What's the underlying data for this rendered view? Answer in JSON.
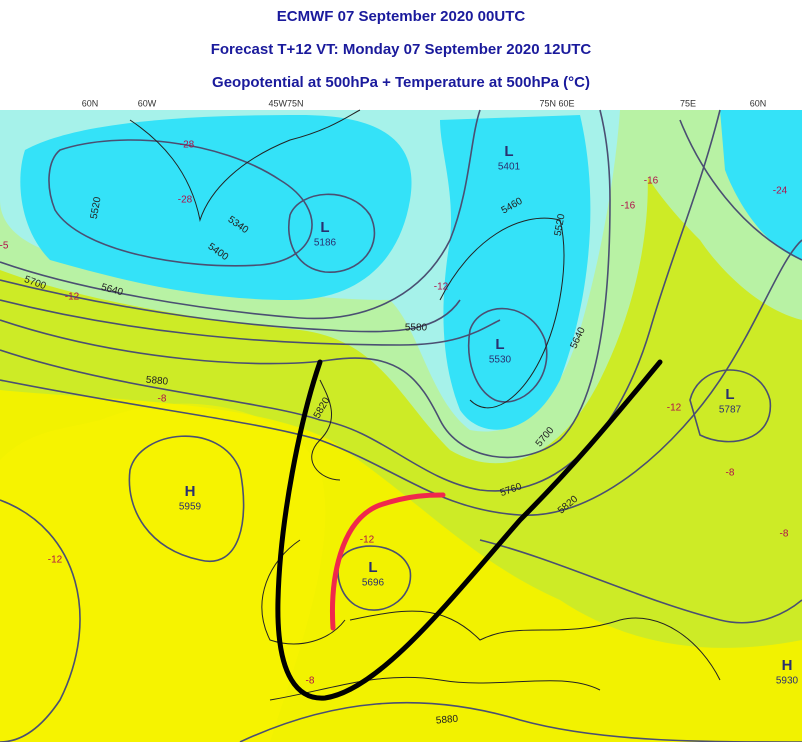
{
  "header": {
    "title": "ECMWF 07 September 2020 00UTC",
    "subtitle": "Forecast T+12 VT: Monday 07 September 2020 12UTC",
    "field": "Geopotential at 500hPa + Temperature at 500hPa (°C)"
  },
  "longitude_labels": [
    "60N",
    "60W",
    "45W75N",
    "75N 60E",
    "75E",
    "60N"
  ],
  "centers": [
    {
      "kind": "L",
      "value": "5401"
    },
    {
      "kind": "L",
      "value": "5186"
    },
    {
      "kind": "L",
      "value": "5530"
    },
    {
      "kind": "L",
      "value": "5787"
    },
    {
      "kind": "H",
      "value": "5959"
    },
    {
      "kind": "L",
      "value": "5696"
    },
    {
      "kind": "H",
      "value": "5930"
    }
  ],
  "contour_labels": [
    "5520",
    "5340",
    "5400",
    "5700",
    "5640",
    "5580",
    "5880",
    "5820",
    "5460",
    "5520",
    "5640",
    "5700",
    "5760",
    "5820",
    "5880"
  ],
  "temperature_labels": [
    "-28",
    "-28",
    "-12",
    "-12",
    "-16",
    "-16",
    "-24",
    "-8",
    "-12",
    "-8",
    "-8",
    "-12",
    "-12",
    "-8",
    "-5"
  ]
}
